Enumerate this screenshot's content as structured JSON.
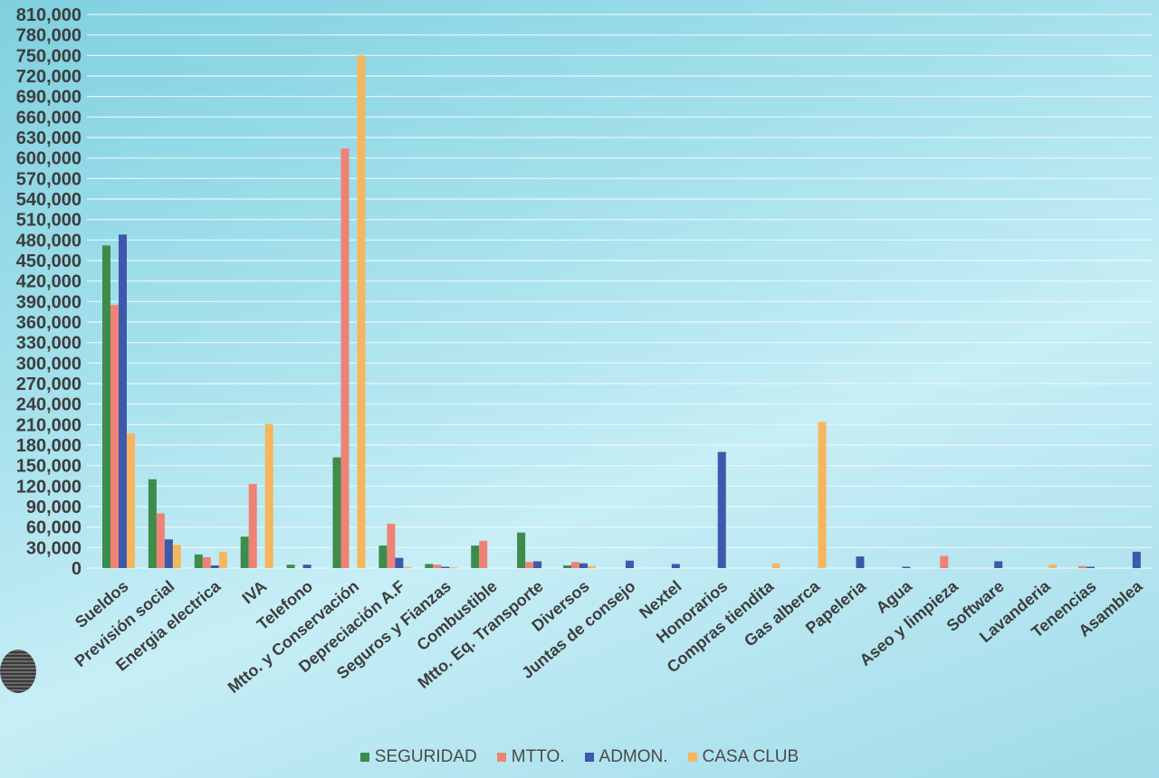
{
  "chart_data": {
    "type": "bar",
    "title": "",
    "xlabel": "",
    "ylabel": "",
    "ylim": [
      0,
      810000
    ],
    "y_tick_step": 30000,
    "grid": true,
    "legend_position": "bottom",
    "categories": [
      "Sueldos",
      "Previsión social",
      "Energia electrica",
      "IVA",
      "Telefono",
      "Mtto. y Conservación",
      "Depreciación A.F",
      "Seguros y Fianzas",
      "Combustible",
      "Mtto. Eq. Transporte",
      "Diversos",
      "Juntas de consejo",
      "Nextel",
      "Honorarios",
      "Compras tiendita",
      "Gas alberca",
      "Papeleria",
      "Agua",
      "Aseo y limpieza",
      "Software",
      "Lavanderia",
      "Tenencias",
      "Asamblea"
    ],
    "series": [
      {
        "name": "SEGURIDAD",
        "color": "#3e8b4c",
        "values": [
          472000,
          130000,
          20000,
          46000,
          5000,
          162000,
          33000,
          6000,
          33000,
          52000,
          4000,
          0,
          0,
          0,
          0,
          0,
          0,
          0,
          0,
          0,
          0,
          0,
          0
        ]
      },
      {
        "name": "MTTO.",
        "color": "#ee8375",
        "values": [
          385000,
          80000,
          16000,
          123000,
          0,
          614000,
          65000,
          5000,
          40000,
          9000,
          9000,
          0,
          0,
          0,
          0,
          0,
          0,
          0,
          18000,
          0,
          0,
          3000,
          0
        ]
      },
      {
        "name": "ADMON.",
        "color": "#3f58ab",
        "values": [
          488000,
          42000,
          4000,
          0,
          5000,
          0,
          15000,
          2000,
          0,
          10000,
          7000,
          11000,
          6000,
          170000,
          0,
          0,
          17000,
          2000,
          0,
          10000,
          0,
          2000,
          24000
        ]
      },
      {
        "name": "CASA CLUB",
        "color": "#f5b65e",
        "values": [
          197000,
          34000,
          24000,
          211000,
          0,
          750000,
          2000,
          1000,
          0,
          0,
          3000,
          0,
          0,
          0,
          7000,
          214000,
          0,
          0,
          0,
          0,
          5000,
          0,
          0
        ]
      }
    ]
  }
}
